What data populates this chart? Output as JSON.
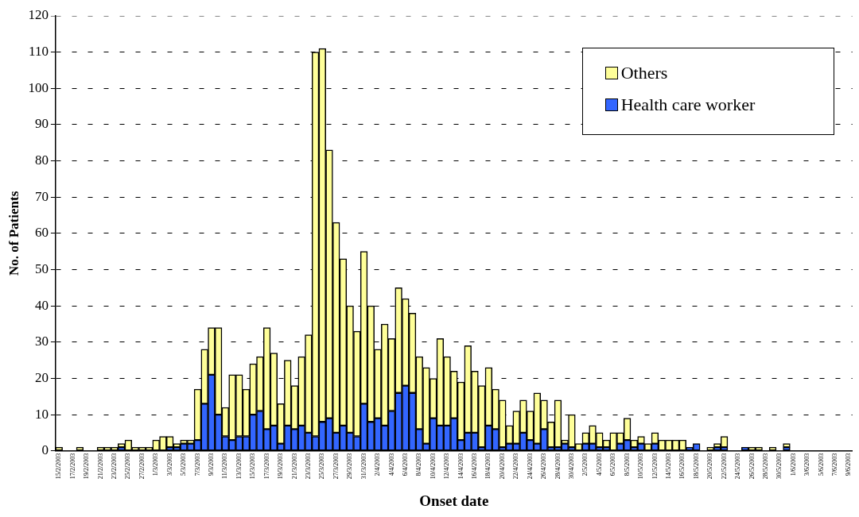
{
  "chart_data": {
    "type": "bar",
    "stacked": true,
    "xlabel": "Onset date",
    "ylabel": "No. of Patients",
    "categories": [
      "15/2/2003",
      null,
      "17/2/2003",
      null,
      "19/2/2003",
      null,
      "21/2/2003",
      null,
      "23/2/2003",
      null,
      "25/2/2003",
      null,
      "27/2/2003",
      null,
      "1/3/2003",
      null,
      "3/3/2003",
      null,
      "5/3/2003",
      null,
      "7/3/2003",
      null,
      "9/3/2003",
      null,
      "11/3/2003",
      null,
      "13/3/2003",
      null,
      "15/3/2003",
      null,
      "17/3/2003",
      null,
      "19/3/2003",
      null,
      "21/3/2003",
      null,
      "23/3/2003",
      null,
      "25/3/2003",
      null,
      "27/3/2003",
      null,
      "29/3/2003",
      null,
      "31/3/2003",
      null,
      "2/4/2003",
      null,
      "4/4/2003",
      null,
      "6/4/2003",
      null,
      "8/4/2003",
      null,
      "10/4/2003",
      null,
      "12/4/2003",
      null,
      "14/4/2003",
      null,
      "16/4/2003",
      null,
      "18/4/2003",
      null,
      "20/4/2003",
      null,
      "22/4/2003",
      null,
      "24/4/2003",
      null,
      "26/4/2003",
      null,
      "28/4/2003",
      null,
      "30/4/2003",
      null,
      "2/5/2003",
      null,
      "4/5/2003",
      null,
      "6/5/2003",
      null,
      "8/5/2003",
      null,
      "10/5/2003",
      null,
      "12/5/2003",
      null,
      "14/5/2003",
      null,
      "16/5/2003",
      null,
      "18/5/2003",
      null,
      "20/5/2003",
      null,
      "22/5/2003",
      null,
      "24/5/2003",
      null,
      "26/5/2003",
      null,
      "28/5/2003",
      null,
      "30/5/2003",
      null,
      "1/6/2003",
      null,
      "3/6/2003",
      null,
      "5/6/2003",
      null,
      "7/6/2003",
      null,
      "9/6/2003"
    ],
    "series": [
      {
        "name": "Health care worker",
        "color": "#3366ff",
        "values": [
          0,
          0,
          0,
          0,
          0,
          0,
          0,
          0,
          0,
          1,
          0,
          0,
          0,
          0,
          0,
          0,
          1,
          1,
          2,
          2,
          3,
          13,
          21,
          10,
          4,
          3,
          4,
          4,
          10,
          11,
          6,
          7,
          2,
          7,
          6,
          7,
          5,
          4,
          8,
          9,
          5,
          7,
          5,
          4,
          13,
          8,
          9,
          7,
          11,
          16,
          18,
          16,
          6,
          2,
          9,
          7,
          7,
          9,
          3,
          5,
          5,
          1,
          7,
          6,
          1,
          2,
          2,
          5,
          3,
          2,
          6,
          1,
          1,
          2,
          1,
          0,
          2,
          2,
          1,
          1,
          0,
          2,
          3,
          1,
          2,
          0,
          2,
          0,
          0,
          0,
          0,
          1,
          2,
          0,
          0,
          1,
          1,
          0,
          0,
          1,
          0,
          0,
          0,
          0,
          0,
          1,
          0,
          0,
          0,
          0,
          0,
          0,
          0,
          0,
          0
        ]
      },
      {
        "name": "Others",
        "color": "#ffff99",
        "values": [
          1,
          0,
          0,
          1,
          0,
          0,
          1,
          1,
          1,
          1,
          3,
          1,
          1,
          1,
          3,
          4,
          3,
          1,
          1,
          1,
          14,
          15,
          13,
          24,
          8,
          18,
          17,
          13,
          14,
          15,
          28,
          20,
          11,
          18,
          12,
          19,
          27,
          106,
          103,
          74,
          58,
          46,
          35,
          29,
          42,
          32,
          19,
          28,
          20,
          29,
          24,
          22,
          20,
          21,
          11,
          24,
          19,
          13,
          16,
          24,
          17,
          17,
          16,
          11,
          13,
          5,
          9,
          9,
          8,
          14,
          8,
          7,
          13,
          1,
          9,
          2,
          3,
          5,
          4,
          2,
          5,
          3,
          6,
          2,
          2,
          2,
          3,
          3,
          3,
          3,
          3,
          0,
          0,
          0,
          1,
          1,
          3,
          0,
          0,
          0,
          1,
          1,
          0,
          1,
          0,
          1,
          0,
          0,
          0,
          0,
          0,
          0,
          0,
          0,
          0
        ]
      }
    ],
    "ylim": [
      0,
      120
    ],
    "yticks": [
      0,
      10,
      20,
      30,
      40,
      50,
      60,
      70,
      80,
      90,
      100,
      110,
      120
    ],
    "grid": "y",
    "legend": "top right"
  }
}
